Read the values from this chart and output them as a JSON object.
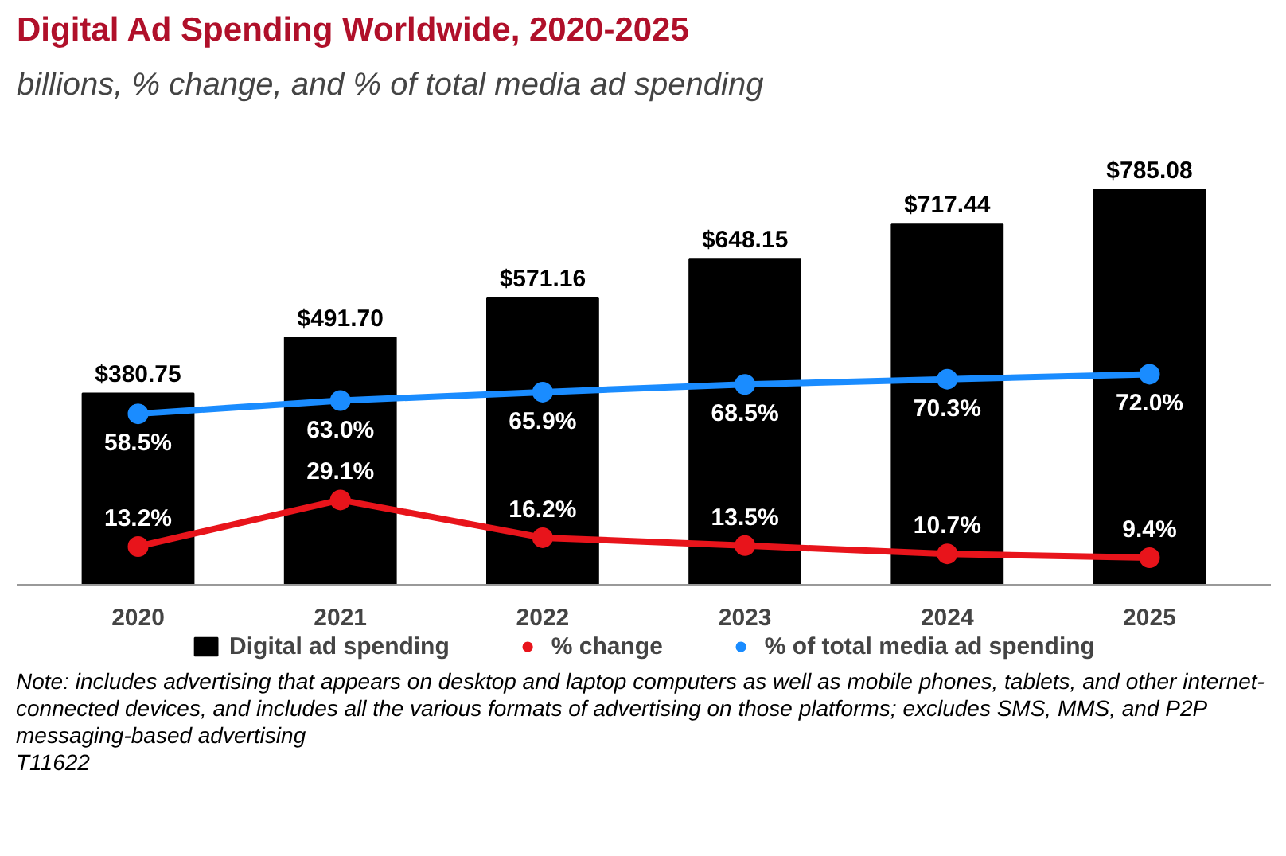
{
  "chart_data": {
    "type": "bar",
    "title": "Digital Ad Spending Worldwide, 2020-2025",
    "subtitle": "billions, % change, and % of total media ad spending",
    "categories": [
      "2020",
      "2021",
      "2022",
      "2023",
      "2024",
      "2025"
    ],
    "marker": "circle",
    "legend": "bottom",
    "grid": false,
    "series": [
      {
        "name": "Digital ad spending",
        "color": "#000000",
        "values": [
          380.75,
          491.7,
          571.16,
          648.15,
          717.44,
          785.08
        ],
        "value_labels": [
          "$380.75",
          "$491.70",
          "$571.16",
          "$648.15",
          "$717.44",
          "$785.08"
        ]
      },
      {
        "name": "% change",
        "type": "line",
        "axis": "y2",
        "color": "#e8141b",
        "values": [
          13.2,
          29.1,
          16.2,
          13.5,
          10.7,
          9.4
        ],
        "value_labels": [
          "13.2%",
          "29.1%",
          "16.2%",
          "13.5%",
          "10.7%",
          "9.4%"
        ]
      },
      {
        "name": "% of total media ad spending",
        "type": "line",
        "axis": "y2",
        "color": "#1a8cff",
        "values": [
          58.5,
          63.0,
          65.9,
          68.5,
          70.3,
          72.0
        ],
        "value_labels": [
          "58.5%",
          "63.0%",
          "65.9%",
          "68.5%",
          "70.3%",
          "72.0%"
        ]
      }
    ],
    "annotations": [
      "Note: includes advertising that appears on desktop and laptop computers as well as mobile phones, tablets, and other internet-connected devices, and includes all the various formats of advertising on those platforms; excludes SMS, MMS, and P2P messaging-based advertising",
      "T11622"
    ]
  }
}
